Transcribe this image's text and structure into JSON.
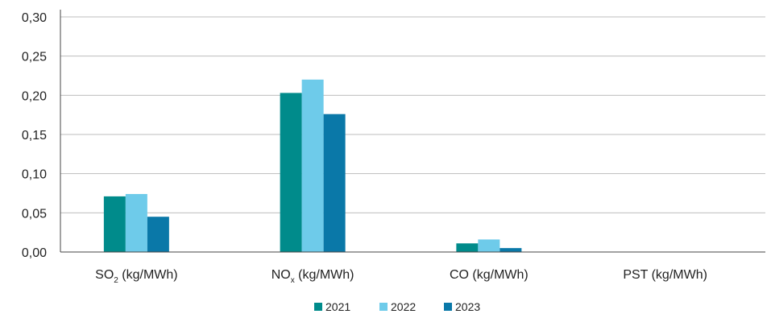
{
  "chart_data": {
    "type": "bar",
    "categories": [
      {
        "main": "SO",
        "sub": "2",
        "rest": " (kg/MWh)"
      },
      {
        "main": "NO",
        "sub": "x",
        "rest": " (kg/MWh)"
      },
      {
        "main": "CO (kg/MWh)",
        "sub": "",
        "rest": ""
      },
      {
        "main": "PST (kg/MWh)",
        "sub": "",
        "rest": ""
      }
    ],
    "series": [
      {
        "name": "2021",
        "color": "#008b8b",
        "values": [
          0.071,
          0.203,
          0.011,
          0
        ]
      },
      {
        "name": "2022",
        "color": "#6ecbea",
        "values": [
          0.074,
          0.22,
          0.016,
          0
        ]
      },
      {
        "name": "2023",
        "color": "#0a78a8",
        "values": [
          0.045,
          0.176,
          0.005,
          0
        ]
      }
    ],
    "ylim": [
      0,
      0.3
    ],
    "yticks": [
      "0,00",
      "0,05",
      "0,10",
      "0,15",
      "0,20",
      "0,25",
      "0,30"
    ],
    "grid": true,
    "legend": "bottom"
  }
}
